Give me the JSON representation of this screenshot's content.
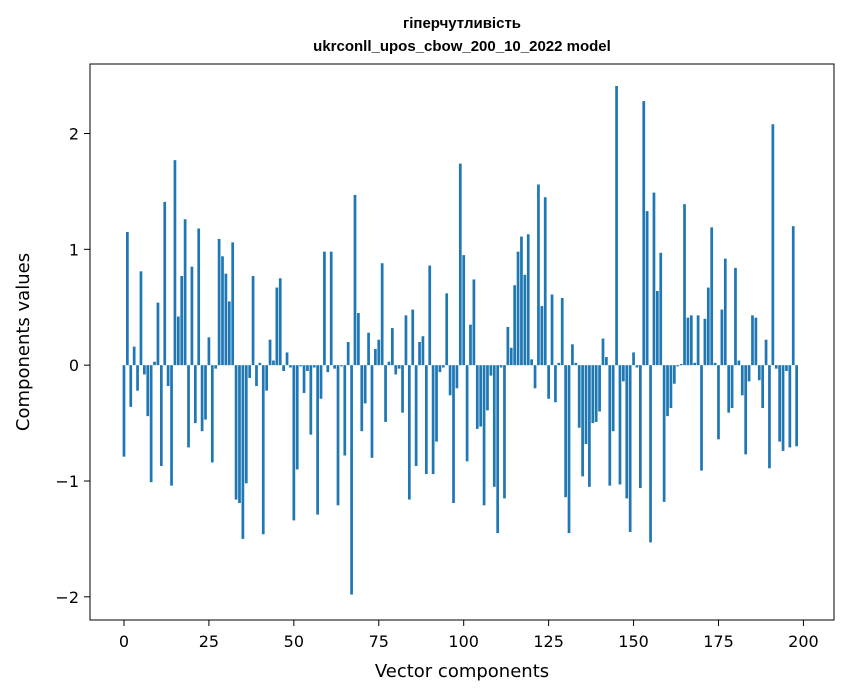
{
  "chart_data": {
    "type": "bar",
    "title_line1": "гіперчутливість",
    "title_line2": "ukrconll_upos_cbow_200_10_2022 model",
    "xlabel": "Vector components",
    "ylabel": "Components values",
    "xlim": [
      -10,
      209
    ],
    "ylim": [
      -2.2,
      2.6
    ],
    "xticks": [
      0,
      25,
      50,
      75,
      100,
      125,
      150,
      175,
      200
    ],
    "yticks": [
      -2,
      -1,
      0,
      1,
      2
    ],
    "ytick_labels": [
      "−2",
      "−1",
      "0",
      "1",
      "2"
    ],
    "grid": false,
    "bar_color": "#1f77b4",
    "values": [
      -0.79,
      1.15,
      -0.36,
      0.16,
      -0.22,
      0.81,
      -0.08,
      -0.44,
      -1.01,
      0.03,
      0.54,
      -0.87,
      1.41,
      -0.18,
      -1.04,
      1.77,
      0.42,
      0.77,
      1.26,
      -0.71,
      0.85,
      -0.5,
      1.18,
      -0.57,
      -0.47,
      0.24,
      -0.84,
      -0.03,
      1.09,
      0.94,
      0.79,
      0.55,
      1.06,
      -1.16,
      -1.19,
      -1.5,
      -1.02,
      -0.11,
      0.77,
      -0.18,
      0.02,
      -1.46,
      -0.22,
      0.22,
      0.04,
      0.67,
      0.75,
      -0.05,
      0.11,
      -0.02,
      -1.34,
      -0.9,
      -0.01,
      -0.24,
      -0.05,
      -0.6,
      -0.02,
      -1.29,
      -0.29,
      0.98,
      -0.06,
      0.98,
      -0.03,
      -1.21,
      -0.01,
      -0.78,
      0.2,
      -1.98,
      1.47,
      0.45,
      -0.57,
      -0.33,
      0.28,
      -0.8,
      0.14,
      0.22,
      0.88,
      -0.49,
      0.03,
      0.32,
      -0.08,
      -0.03,
      -0.41,
      0.43,
      -1.16,
      0.48,
      -0.87,
      0.2,
      0.25,
      -0.94,
      0.86,
      -0.94,
      -0.66,
      -0.06,
      -0.02,
      0.62,
      -0.26,
      -1.19,
      -0.2,
      1.74,
      0.95,
      -0.83,
      0.35,
      0.74,
      -0.55,
      -0.53,
      -1.21,
      -0.39,
      -0.09,
      -1.05,
      -1.45,
      -0.02,
      -1.15,
      0.33,
      0.15,
      0.69,
      0.98,
      1.11,
      0.78,
      1.13,
      0.05,
      -0.2,
      1.56,
      0.51,
      1.45,
      -0.29,
      0.61,
      -0.32,
      0.02,
      0.58,
      -1.14,
      -1.45,
      0.18,
      0.02,
      -0.54,
      -0.96,
      -0.68,
      -1.05,
      -0.5,
      -0.49,
      -0.4,
      0.23,
      0.07,
      -1.04,
      -0.57,
      2.41,
      -1.03,
      -0.14,
      -1.15,
      -1.44,
      0.11,
      -0.02,
      -1.06,
      2.28,
      1.33,
      -1.53,
      1.49,
      0.64,
      0.97,
      -1.18,
      -0.44,
      -0.37,
      -0.16,
      -0.01,
      0.01,
      1.39,
      0.41,
      0.43,
      0.02,
      0.43,
      -0.91,
      0.4,
      0.67,
      1.19,
      0.02,
      -0.64,
      0.48,
      0.92,
      -0.41,
      -0.37,
      0.84,
      0.04,
      -0.26,
      -0.77,
      -0.14,
      0.43,
      0.41,
      -0.13,
      -0.37,
      0.22,
      -0.89,
      2.08,
      -0.03,
      -0.66,
      -0.74,
      -0.05,
      -0.71,
      1.2,
      -0.7
    ]
  }
}
